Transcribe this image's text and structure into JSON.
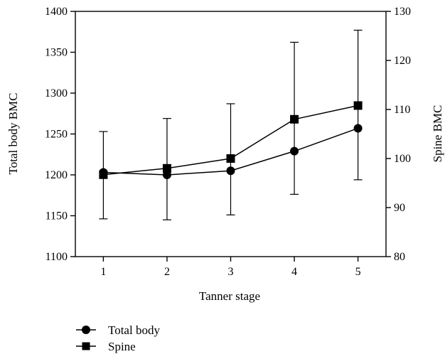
{
  "chart_data": {
    "type": "line",
    "xlabel": "Tanner stage",
    "ylabel_left": "Total body BMC",
    "ylabel_right": "Spine BMC",
    "categories": [
      1,
      2,
      3,
      4,
      5
    ],
    "x_ticks": [
      "1",
      "2",
      "3",
      "4",
      "5"
    ],
    "y_left": {
      "lim": [
        1100,
        1400
      ],
      "ticks": [
        1100,
        1150,
        1200,
        1250,
        1300,
        1350,
        1400
      ]
    },
    "y_right": {
      "lim": [
        80,
        130
      ],
      "ticks": [
        80,
        90,
        100,
        110,
        120,
        130
      ]
    },
    "legend_position": "bottom-left, below plot",
    "series": [
      {
        "name": "Total body",
        "axis": "left",
        "marker": "circle",
        "values": [
          1203,
          1200,
          1205,
          1229,
          1257
        ],
        "error_lower": [
          null,
          1145,
          1151,
          null,
          1194
        ],
        "error_upper": [
          null,
          1269,
          1287,
          null,
          1377
        ]
      },
      {
        "name": "Spine",
        "axis": "right",
        "marker": "square",
        "values": [
          96.7,
          98,
          100,
          108,
          110.8
        ],
        "error_lower": [
          87.7,
          null,
          null,
          92.7,
          null
        ],
        "error_upper": [
          105.5,
          null,
          null,
          123.7,
          null
        ]
      }
    ]
  }
}
